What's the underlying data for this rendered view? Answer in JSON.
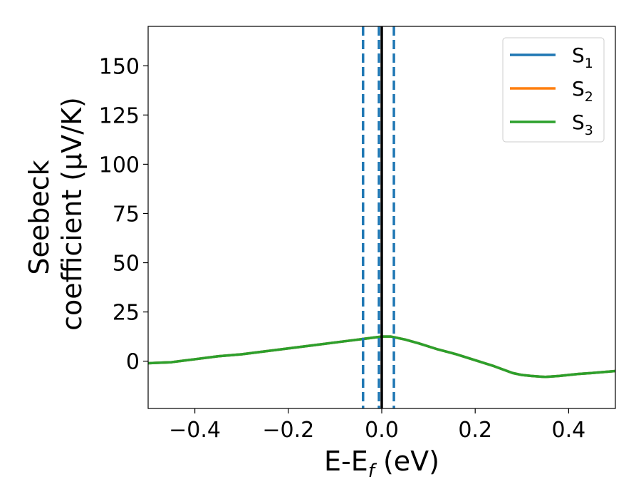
{
  "chart_data": {
    "type": "line",
    "xlabel_main": "E-E",
    "xlabel_sub": "f",
    "xlabel_unit": " (eV)",
    "ylabel_line1": "Seebeck",
    "ylabel_line2": "coefficient  (μV/K)",
    "xlim": [
      -0.5,
      0.5
    ],
    "ylim": [
      -24,
      170
    ],
    "xticks": [
      -0.4,
      -0.2,
      0.0,
      0.2,
      0.4
    ],
    "xtick_labels": [
      "−0.4",
      "−0.2",
      "0.0",
      "0.2",
      "0.4"
    ],
    "yticks": [
      0,
      25,
      50,
      75,
      100,
      125,
      150
    ],
    "ytick_labels": [
      "0",
      "25",
      "50",
      "75",
      "100",
      "125",
      "150"
    ],
    "grid": false,
    "legend_position": "top-right",
    "series": [
      {
        "name": "S",
        "name_sub": "1",
        "color": "#1f77b4",
        "x": [
          -0.5,
          -0.45,
          -0.4,
          -0.35,
          -0.3,
          -0.25,
          -0.2,
          -0.15,
          -0.1,
          -0.05,
          0.0,
          0.02,
          0.05,
          0.08,
          0.12,
          0.16,
          0.2,
          0.24,
          0.28,
          0.3,
          0.32,
          0.35,
          0.38,
          0.4,
          0.42,
          0.45,
          0.5
        ],
        "y": [
          -1,
          -0.5,
          1,
          2.5,
          3.5,
          5,
          6.5,
          8,
          9.5,
          11,
          12.5,
          12.5,
          11,
          9,
          6,
          3.5,
          0.5,
          -2.5,
          -6,
          -7,
          -7.5,
          -8,
          -7.5,
          -7,
          -6.5,
          -6,
          -5
        ]
      },
      {
        "name": "S",
        "name_sub": "2",
        "color": "#ff7f0e",
        "x": [
          -0.5,
          -0.45,
          -0.4,
          -0.35,
          -0.3,
          -0.25,
          -0.2,
          -0.15,
          -0.1,
          -0.05,
          0.0,
          0.02,
          0.05,
          0.08,
          0.12,
          0.16,
          0.2,
          0.24,
          0.28,
          0.3,
          0.32,
          0.35,
          0.38,
          0.4,
          0.42,
          0.45,
          0.5
        ],
        "y": [
          -1,
          -0.5,
          1,
          2.5,
          3.5,
          5,
          6.5,
          8,
          9.5,
          11,
          12.5,
          12.5,
          11,
          9,
          6,
          3.5,
          0.5,
          -2.5,
          -6,
          -7,
          -7.5,
          -8,
          -7.5,
          -7,
          -6.5,
          -6,
          -5
        ]
      },
      {
        "name": "S",
        "name_sub": "3",
        "color": "#2ca02c",
        "x": [
          -0.5,
          -0.45,
          -0.4,
          -0.35,
          -0.3,
          -0.25,
          -0.2,
          -0.15,
          -0.1,
          -0.05,
          0.0,
          0.02,
          0.05,
          0.08,
          0.12,
          0.16,
          0.2,
          0.24,
          0.28,
          0.3,
          0.32,
          0.35,
          0.38,
          0.4,
          0.42,
          0.45,
          0.5
        ],
        "y": [
          -1,
          -0.5,
          1,
          2.5,
          3.5,
          5,
          6.5,
          8,
          9.5,
          11,
          12.5,
          12.5,
          11,
          9,
          6,
          3.5,
          0.5,
          -2.5,
          -6,
          -7,
          -7.5,
          -8,
          -7.5,
          -7,
          -6.5,
          -6,
          -5
        ]
      }
    ],
    "vlines": [
      {
        "x": 0.0,
        "color": "#000000",
        "style": "solid"
      },
      {
        "x": -0.04,
        "color": "#1f77b4",
        "style": "dashed"
      },
      {
        "x": -0.006,
        "color": "#1f77b4",
        "style": "dashed"
      },
      {
        "x": 0.026,
        "color": "#1f77b4",
        "style": "dashed"
      }
    ]
  }
}
